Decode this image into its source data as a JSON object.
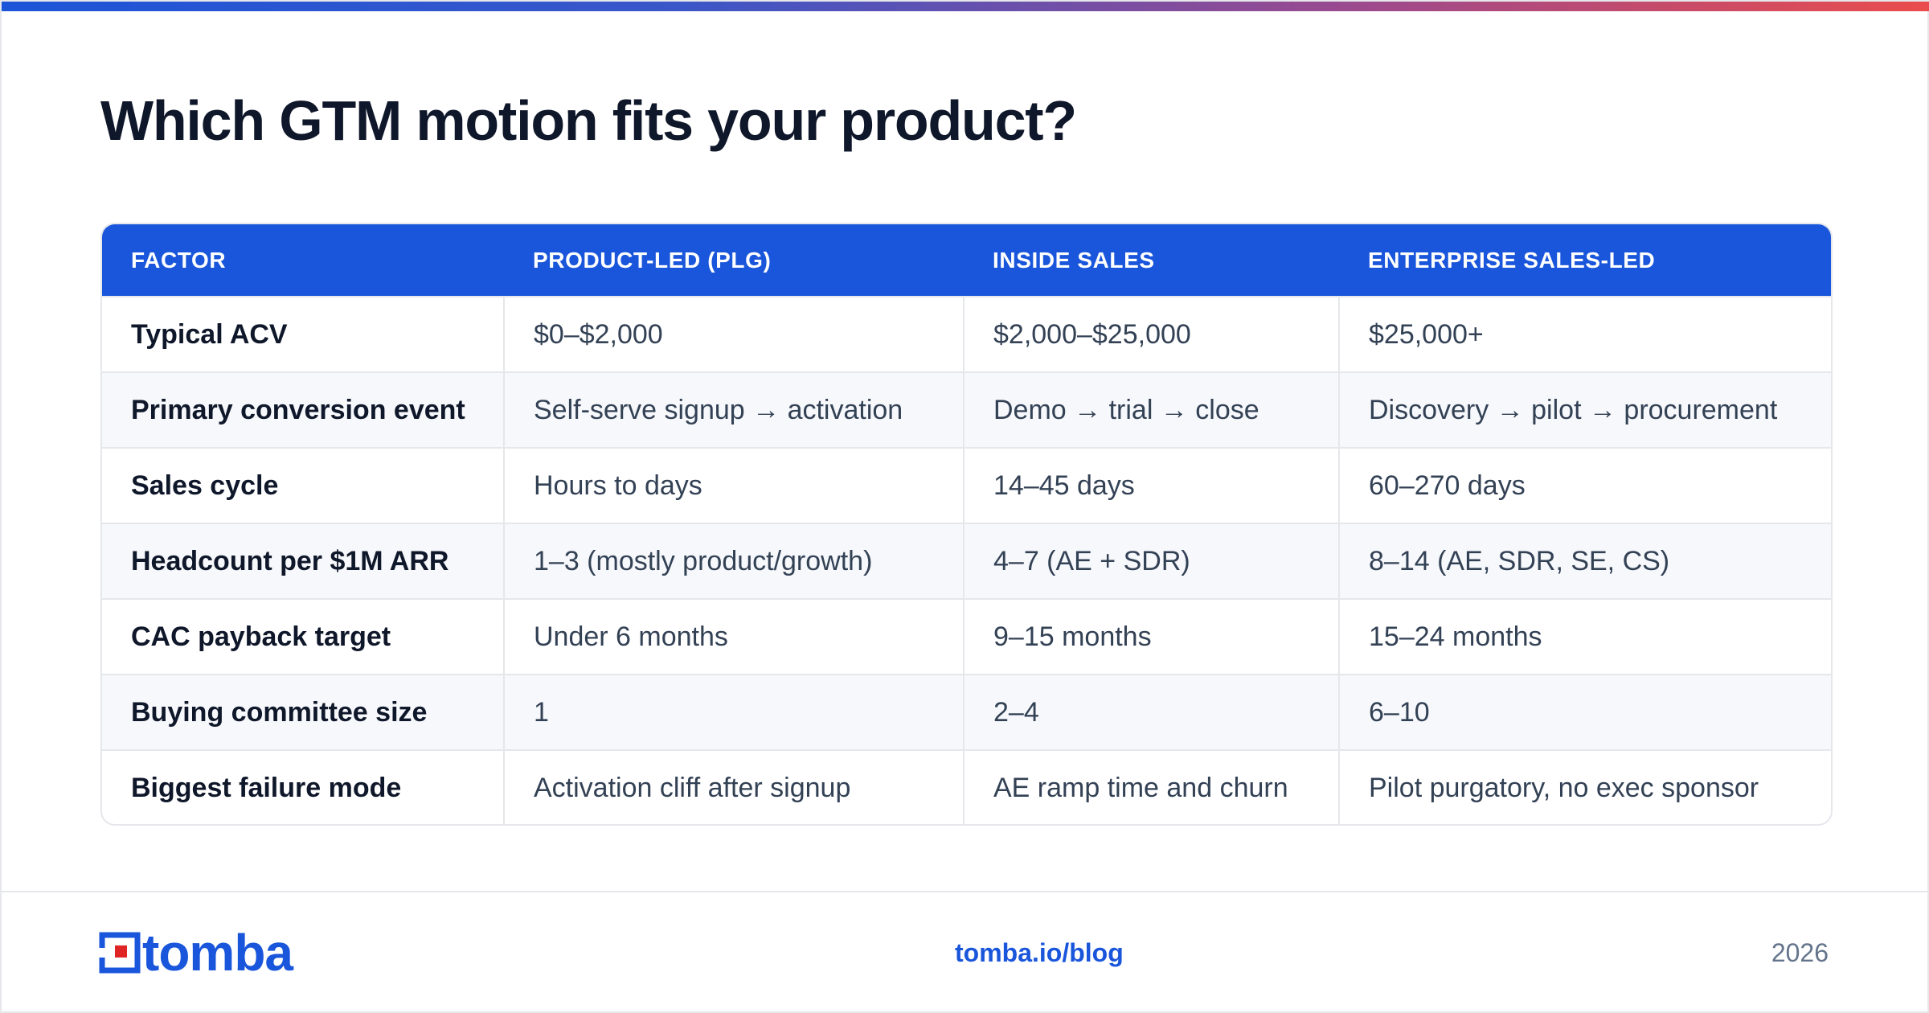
{
  "colors": {
    "accent": "#1a56db",
    "title": "#0f172a",
    "body_text": "#334155",
    "muted": "#64748b",
    "logo_red": "#e02424",
    "top_bar_gradient": [
      "#1d55d8",
      "#ea4c4c"
    ]
  },
  "header": {
    "title": "Which GTM motion fits your product?"
  },
  "table": {
    "columns": [
      "FACTOR",
      "PRODUCT-LED (PLG)",
      "INSIDE SALES",
      "ENTERPRISE SALES-LED"
    ],
    "rows": [
      [
        "Typical ACV",
        "$0–$2,000",
        "$2,000–$25,000",
        "$25,000+"
      ],
      [
        "Primary conversion event",
        "Self-serve signup → activation",
        "Demo → trial → close",
        "Discovery → pilot → procurement"
      ],
      [
        "Sales cycle",
        "Hours to days",
        "14–45 days",
        "60–270 days"
      ],
      [
        "Headcount per $1M ARR",
        "1–3 (mostly product/growth)",
        "4–7 (AE + SDR)",
        "8–14 (AE, SDR, SE, CS)"
      ],
      [
        "CAC payback target",
        "Under 6 months",
        "9–15 months",
        "15–24 months"
      ],
      [
        "Buying committee size",
        "1",
        "2–4",
        "6–10"
      ],
      [
        "Biggest failure mode",
        "Activation cliff after signup",
        "AE ramp time and churn",
        "Pilot purgatory, no exec sponsor"
      ]
    ]
  },
  "footer": {
    "logo_text": "tomba",
    "logo_icon": "tomba-logo-mark-icon",
    "link": "tomba.io/blog",
    "year": "2026"
  }
}
